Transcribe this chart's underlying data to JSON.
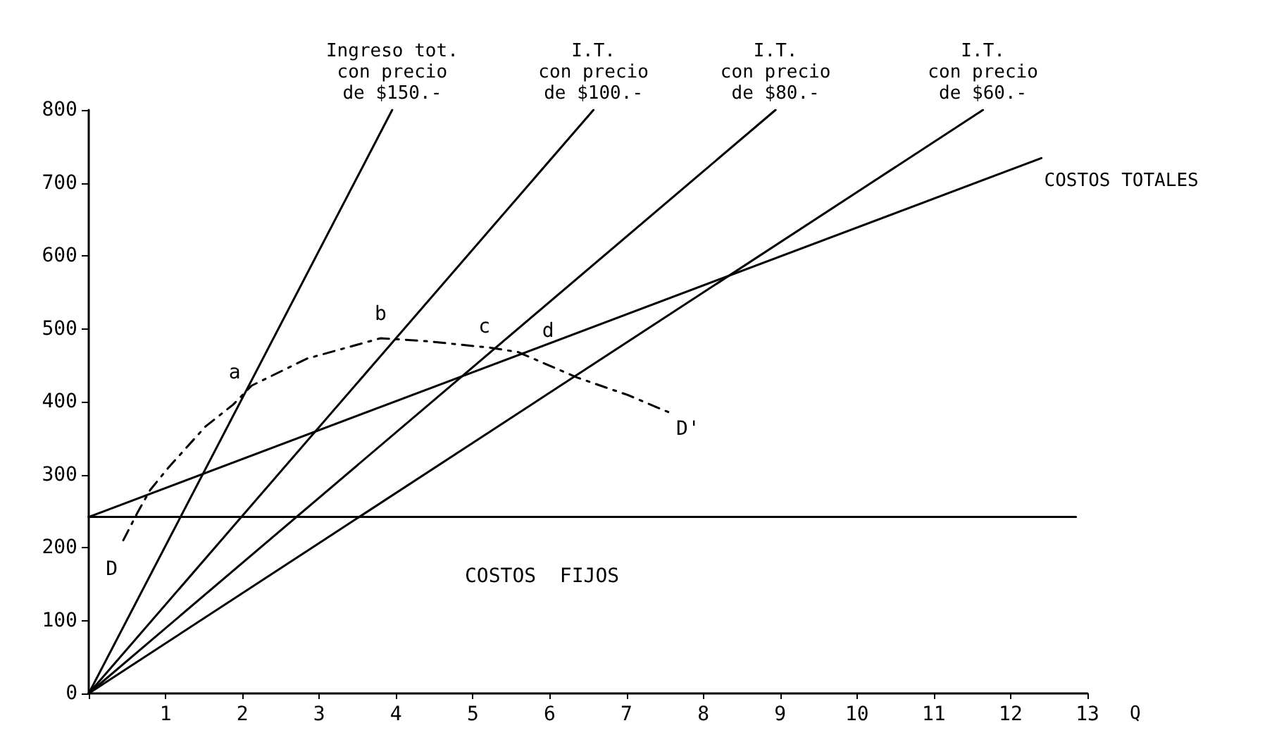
{
  "chart_data": {
    "type": "line",
    "xlabel": "Q",
    "xlim": [
      0,
      13
    ],
    "ylim": [
      0,
      800
    ],
    "xticks": [
      {
        "value": 0,
        "label": null
      },
      1,
      2,
      3,
      4,
      5,
      6,
      7,
      8,
      9,
      10,
      11,
      12,
      13
    ],
    "yticks": [
      0,
      100,
      200,
      300,
      400,
      500,
      600,
      700,
      800
    ],
    "grid": false,
    "marker": "none",
    "legend": false,
    "series": [
      {
        "name": "Ingreso tot.\ncon precio\nde $150.-",
        "color": "#000000",
        "x": [
          0,
          3.95
        ],
        "values": [
          0,
          800
        ]
      },
      {
        "name": "I.T.\ncon precio\nde $100.-",
        "color": "#000000",
        "x": [
          0,
          6.57
        ],
        "values": [
          0,
          800
        ]
      },
      {
        "name": "I.T.\ncon precio\nde $80.-",
        "color": "#000000",
        "x": [
          0,
          8.94
        ],
        "values": [
          0,
          800
        ]
      },
      {
        "name": "I.T.\ncon precio\nde $60.-",
        "color": "#000000",
        "x": [
          0,
          11.64
        ],
        "values": [
          0,
          800
        ]
      },
      {
        "name": "COSTOS TOTALES",
        "color": "#000000",
        "x": [
          0,
          12.4
        ],
        "values": [
          242,
          734
        ]
      },
      {
        "color": "#000000",
        "x": [
          0,
          12.85
        ],
        "values": [
          242,
          242
        ]
      },
      {
        "color": "#000000",
        "line_style": "dashed",
        "x": [
          0.45,
          0.63,
          0.8,
          1.04,
          1.52,
          1.88,
          2.12,
          2.84,
          3.8,
          4.39,
          5.23,
          5.59,
          6.36,
          7.02,
          7.56
        ],
        "values": [
          210,
          247,
          279,
          310,
          366,
          396,
          422,
          459,
          487,
          483,
          474,
          468,
          433,
          409,
          385
        ]
      }
    ],
    "annotations": [
      "a",
      "b",
      "c",
      "d",
      "D",
      "D'",
      "COSTOS  FIJOS"
    ]
  }
}
